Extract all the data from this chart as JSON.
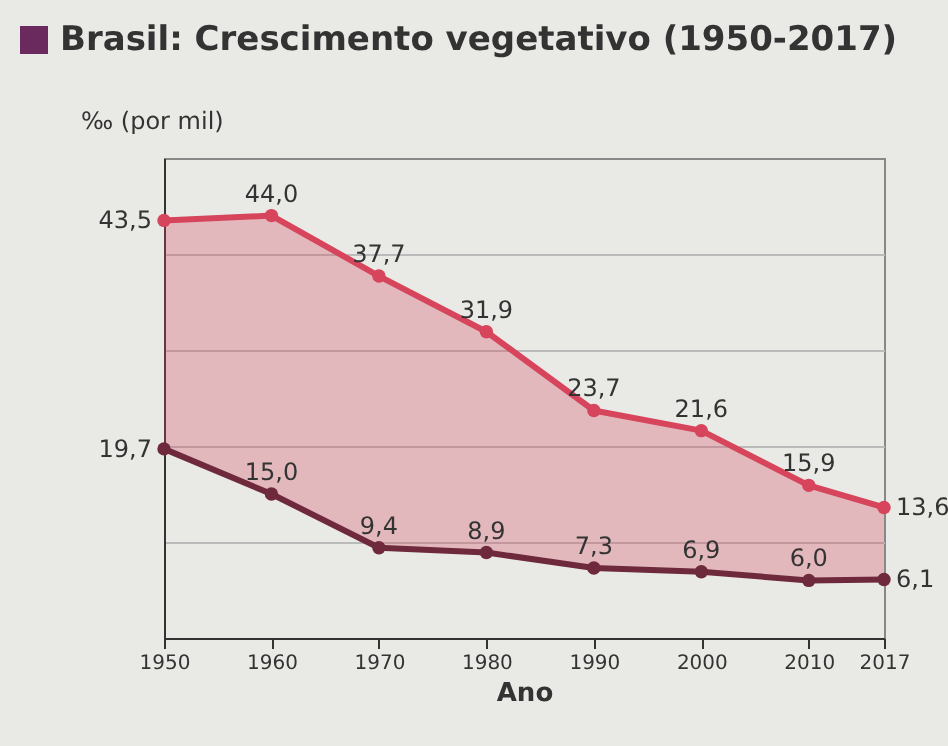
{
  "chart_data": {
    "type": "line",
    "title": "Brasil: Crescimento vegetativo (1950-2017)",
    "xlabel": "Ano",
    "ylabel": "‰ (por mil)",
    "x": [
      1950,
      1960,
      1970,
      1980,
      1990,
      2000,
      2010,
      2017
    ],
    "xlim": [
      1950,
      2017
    ],
    "xticks": [
      1950,
      1960,
      1970,
      1980,
      1990,
      2000,
      2010,
      2017
    ],
    "ylim": [
      0,
      50
    ],
    "yticks": [
      {
        "value": 10,
        "label": null
      },
      {
        "value": 20,
        "label": null
      },
      {
        "value": 30,
        "label": null
      },
      {
        "value": 40,
        "label": null
      }
    ],
    "tick_labels": "x",
    "grid": "y",
    "marker": "circle",
    "line_style": "solid",
    "series": [
      {
        "color": "#d6455c",
        "values": [
          43.5,
          44.0,
          37.7,
          31.9,
          23.7,
          21.6,
          15.9,
          13.6
        ],
        "value_labels": [
          "43,5",
          "44,0",
          "37,7",
          "31,9",
          "23,7",
          "21,6",
          "15,9",
          "13,6"
        ],
        "lower": [
          19.7,
          15.0,
          9.4,
          8.9,
          7.3,
          6.9,
          6.0,
          6.1
        ],
        "upper": [
          43.5,
          44.0,
          37.7,
          31.9,
          23.7,
          21.6,
          15.9,
          13.6
        ]
      },
      {
        "color": "#6e2a3c",
        "values": [
          19.7,
          15.0,
          9.4,
          8.9,
          7.3,
          6.9,
          6.0,
          6.1
        ],
        "value_labels": [
          "19,7",
          "15,0",
          "9,4",
          "8,9",
          "7,3",
          "6,9",
          "6,0",
          "6,1"
        ]
      }
    ]
  }
}
